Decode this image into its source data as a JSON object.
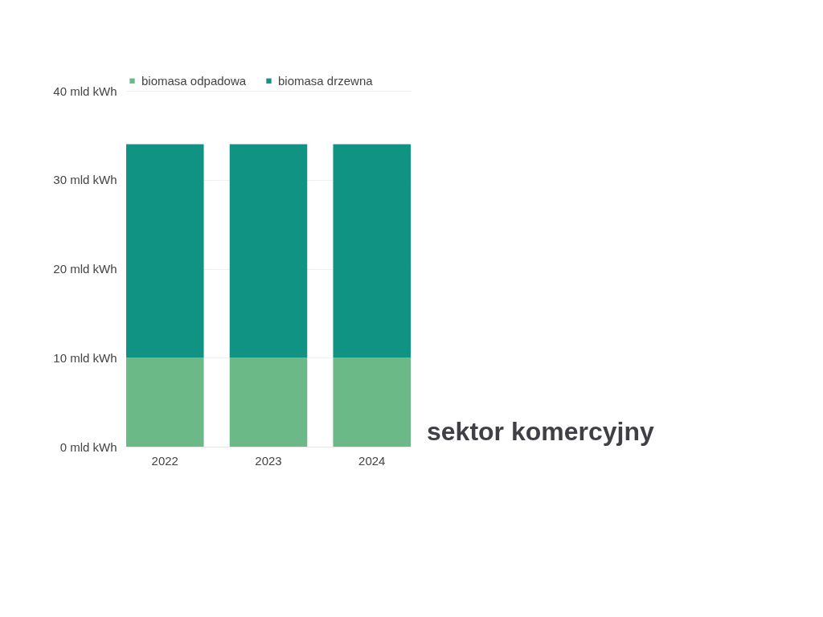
{
  "chart_data": {
    "type": "bar",
    "stacked": true,
    "categories": [
      "2022",
      "2023",
      "2024"
    ],
    "series": [
      {
        "name": "biomasa odpadowa",
        "color": "#6bb987",
        "values": [
          10,
          10,
          10
        ]
      },
      {
        "name": "biomasa drzewna",
        "color": "#119383",
        "values": [
          24,
          24,
          24
        ]
      }
    ],
    "ylim": [
      0,
      40
    ],
    "yticks": [
      {
        "value": 0,
        "label": "0 mld kWh"
      },
      {
        "value": 10,
        "label": "10 mld kWh"
      },
      {
        "value": 20,
        "label": "20 mld kWh"
      },
      {
        "value": 30,
        "label": "30 mld kWh"
      },
      {
        "value": 40,
        "label": "40 mld kWh"
      }
    ],
    "grid": "y",
    "legend": "top left",
    "annotations": [
      "sektor komercyjny"
    ]
  }
}
